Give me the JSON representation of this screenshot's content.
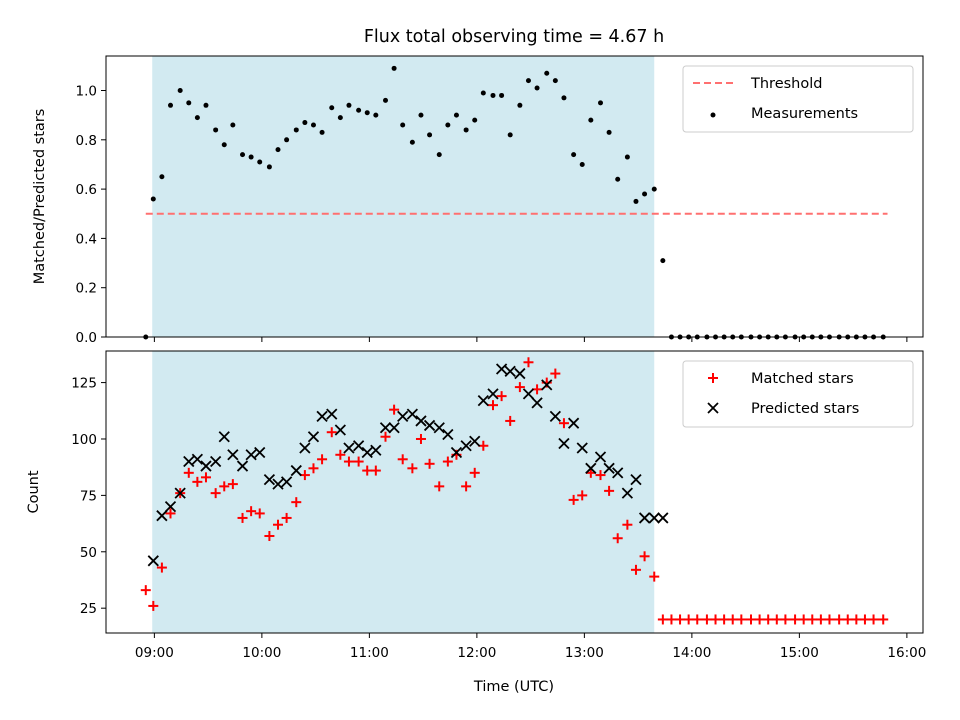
{
  "chart_data": {
    "title": "Flux total observing time = 4.67 h",
    "xlabel": "Time (UTC)",
    "x_unit": "hours UTC",
    "xlim": [
      8.55,
      16.15
    ],
    "x_ticks": [
      {
        "value": 9,
        "label": "09:00"
      },
      {
        "value": 10,
        "label": "10:00"
      },
      {
        "value": 11,
        "label": "11:00"
      },
      {
        "value": 12,
        "label": "12:00"
      },
      {
        "value": 13,
        "label": "13:00"
      },
      {
        "value": 14,
        "label": "14:00"
      },
      {
        "value": 15,
        "label": "15:00"
      },
      {
        "value": 16,
        "label": "16:00"
      }
    ],
    "shaded_span": {
      "x_start": 8.98,
      "x_end": 13.65,
      "color": "#add8e6"
    },
    "panels": [
      {
        "type": "scatter",
        "ylabel": "Matched/Predicted stars",
        "ylim": [
          0,
          1.14
        ],
        "y_ticks": [
          "0.0",
          "0.2",
          "0.4",
          "0.6",
          "0.8",
          "1.0"
        ],
        "legend": "top-right",
        "series": [
          {
            "name": "Threshold",
            "kind": "line",
            "style": "dashed",
            "color": "#ff7070",
            "x": [
              8.92,
              15.82
            ],
            "y": [
              0.5,
              0.5
            ]
          },
          {
            "name": "Measurements",
            "kind": "points",
            "marker": "dot",
            "color": "#000000",
            "x": [
              8.92,
              8.99,
              9.07,
              9.15,
              9.24,
              9.32,
              9.4,
              9.48,
              9.57,
              9.65,
              9.73,
              9.82,
              9.9,
              9.98,
              10.07,
              10.15,
              10.23,
              10.32,
              10.4,
              10.48,
              10.56,
              10.65,
              10.73,
              10.81,
              10.9,
              10.98,
              11.06,
              11.15,
              11.23,
              11.31,
              11.4,
              11.48,
              11.56,
              11.65,
              11.73,
              11.81,
              11.9,
              11.98,
              12.06,
              12.15,
              12.23,
              12.31,
              12.4,
              12.48,
              12.56,
              12.65,
              12.73,
              12.81,
              12.9,
              12.98,
              13.06,
              13.15,
              13.23,
              13.31,
              13.4,
              13.48,
              13.56,
              13.65,
              13.73,
              13.81,
              13.89,
              13.97,
              14.05,
              14.14,
              14.22,
              14.3,
              14.38,
              14.46,
              14.55,
              14.63,
              14.71,
              14.79,
              14.87,
              14.96,
              15.04,
              15.12,
              15.2,
              15.28,
              15.37,
              15.45,
              15.53,
              15.61,
              15.69,
              15.78
            ],
            "y": [
              0.0,
              0.56,
              0.65,
              0.94,
              1.0,
              0.95,
              0.89,
              0.94,
              0.84,
              0.78,
              0.86,
              0.74,
              0.73,
              0.71,
              0.69,
              0.76,
              0.8,
              0.84,
              0.87,
              0.86,
              0.83,
              0.93,
              0.89,
              0.94,
              0.92,
              0.91,
              0.9,
              0.96,
              1.09,
              0.86,
              0.79,
              0.9,
              0.82,
              0.74,
              0.86,
              0.9,
              0.84,
              0.88,
              0.99,
              0.98,
              0.98,
              0.82,
              0.94,
              1.04,
              1.01,
              1.07,
              1.04,
              0.97,
              0.74,
              0.7,
              0.88,
              0.95,
              0.83,
              0.64,
              0.73,
              0.55,
              0.58,
              0.6,
              0.31,
              0.0,
              0.0,
              0.0,
              0.0,
              0.0,
              0.0,
              0.0,
              0.0,
              0.0,
              0.0,
              0.0,
              0.0,
              0.0,
              0.0,
              0.0,
              0.0,
              0.0,
              0.0,
              0.0,
              0.0,
              0.0,
              0.0,
              0.0,
              0.0,
              0.0
            ]
          }
        ]
      },
      {
        "type": "scatter",
        "ylabel": "Count",
        "ylim": [
          14,
          139
        ],
        "y_ticks": [
          "25",
          "50",
          "75",
          "100",
          "125"
        ],
        "legend": "top-right",
        "series": [
          {
            "name": "Matched stars",
            "kind": "points",
            "marker": "plus",
            "color": "#ff0000",
            "x": [
              8.92,
              8.99,
              9.07,
              9.15,
              9.24,
              9.32,
              9.4,
              9.48,
              9.57,
              9.65,
              9.73,
              9.82,
              9.9,
              9.98,
              10.07,
              10.15,
              10.23,
              10.32,
              10.4,
              10.48,
              10.56,
              10.65,
              10.73,
              10.81,
              10.9,
              10.98,
              11.06,
              11.15,
              11.23,
              11.31,
              11.4,
              11.48,
              11.56,
              11.65,
              11.73,
              11.81,
              11.9,
              11.98,
              12.06,
              12.15,
              12.23,
              12.31,
              12.4,
              12.48,
              12.56,
              12.65,
              12.73,
              12.81,
              12.9,
              12.98,
              13.06,
              13.15,
              13.23,
              13.31,
              13.4,
              13.48,
              13.56,
              13.65,
              13.73,
              13.81,
              13.89,
              13.97,
              14.05,
              14.14,
              14.22,
              14.3,
              14.38,
              14.46,
              14.55,
              14.63,
              14.71,
              14.79,
              14.87,
              14.96,
              15.04,
              15.12,
              15.2,
              15.28,
              15.37,
              15.45,
              15.53,
              15.61,
              15.69,
              15.78
            ],
            "y": [
              33,
              26,
              43,
              67,
              76,
              85,
              81,
              83,
              76,
              79,
              80,
              65,
              68,
              67,
              57,
              62,
              65,
              72,
              84,
              87,
              91,
              103,
              93,
              90,
              90,
              86,
              86,
              101,
              113,
              91,
              87,
              100,
              89,
              79,
              90,
              93,
              79,
              85,
              97,
              115,
              119,
              108,
              123,
              134,
              122,
              125,
              129,
              107,
              73,
              75,
              85,
              84,
              77,
              56,
              62,
              42,
              48,
              39,
              20,
              20,
              20,
              20,
              20,
              20,
              20,
              20,
              20,
              20,
              20,
              20,
              20,
              20,
              20,
              20,
              20,
              20,
              20,
              20,
              20,
              20,
              20,
              20,
              20,
              20
            ]
          },
          {
            "name": "Predicted stars",
            "kind": "points",
            "marker": "x",
            "color": "#000000",
            "x": [
              8.99,
              9.07,
              9.15,
              9.24,
              9.32,
              9.4,
              9.48,
              9.57,
              9.65,
              9.73,
              9.82,
              9.9,
              9.98,
              10.07,
              10.15,
              10.23,
              10.32,
              10.4,
              10.48,
              10.56,
              10.65,
              10.73,
              10.81,
              10.9,
              10.98,
              11.06,
              11.15,
              11.23,
              11.31,
              11.4,
              11.48,
              11.56,
              11.65,
              11.73,
              11.81,
              11.9,
              11.98,
              12.06,
              12.15,
              12.23,
              12.31,
              12.4,
              12.48,
              12.56,
              12.65,
              12.73,
              12.81,
              12.9,
              12.98,
              13.06,
              13.15,
              13.23,
              13.31,
              13.4,
              13.48,
              13.56,
              13.65,
              13.73
            ],
            "y": [
              46,
              66,
              70,
              76,
              90,
              91,
              88,
              90,
              101,
              93,
              88,
              93,
              94,
              82,
              80,
              81,
              86,
              96,
              101,
              110,
              111,
              104,
              96,
              97,
              94,
              95,
              105,
              105,
              110,
              111,
              108,
              106,
              105,
              102,
              94,
              97,
              99,
              117,
              120,
              131,
              130,
              129,
              120,
              116,
              124,
              110,
              98,
              107,
              96,
              87,
              92,
              87,
              85,
              76,
              82,
              65,
              65,
              65
            ]
          }
        ]
      }
    ]
  }
}
